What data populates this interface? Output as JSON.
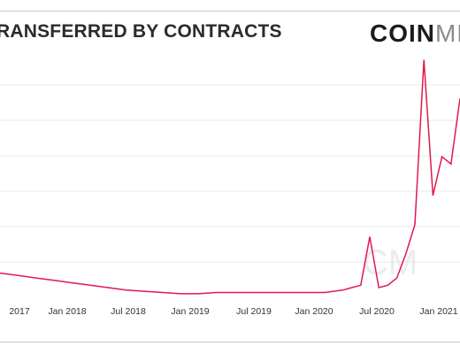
{
  "header": {
    "title": "RANSFERRED BY CONTRACTS",
    "logo_bold": "COIN",
    "logo_light": "MET"
  },
  "watermark": "CM",
  "colors": {
    "line": "#e0194f",
    "grid": "#e8e8e8",
    "frame": "#c8c8c8"
  },
  "chart_data": {
    "type": "line",
    "title": "",
    "xlabel": "",
    "ylabel": "",
    "grid": true,
    "x_ticks": [
      "2017",
      "Jan 2018",
      "Jul 2018",
      "Jan 2019",
      "Jul 2019",
      "Jan 2020",
      "Jul 2020",
      "Jan 2021"
    ],
    "series": [
      {
        "x": [
          "2016-11",
          "2017-01",
          "2017-03",
          "2017-05",
          "2017-07",
          "2017-09",
          "2017-11",
          "2018-01",
          "2018-03",
          "2018-05",
          "2018-07",
          "2018-09",
          "2018-11",
          "2019-01",
          "2019-03",
          "2019-05",
          "2019-07",
          "2019-09",
          "2019-11",
          "2020-01",
          "2020-02",
          "2020-03",
          "2020-04",
          "2020-05",
          "2020-06",
          "2020-07",
          "2020-08",
          "2020-09",
          "2020-10",
          "2020-11",
          "2020-12",
          "2021-01",
          "2021-02"
        ],
        "values": [
          0.1,
          0.09,
          0.08,
          0.07,
          0.06,
          0.05,
          0.04,
          0.03,
          0.025,
          0.02,
          0.015,
          0.015,
          0.02,
          0.02,
          0.02,
          0.02,
          0.02,
          0.02,
          0.02,
          0.03,
          0.04,
          0.05,
          0.25,
          0.04,
          0.05,
          0.08,
          0.18,
          0.3,
          0.98,
          0.42,
          0.58,
          0.55,
          0.82
        ]
      }
    ]
  }
}
